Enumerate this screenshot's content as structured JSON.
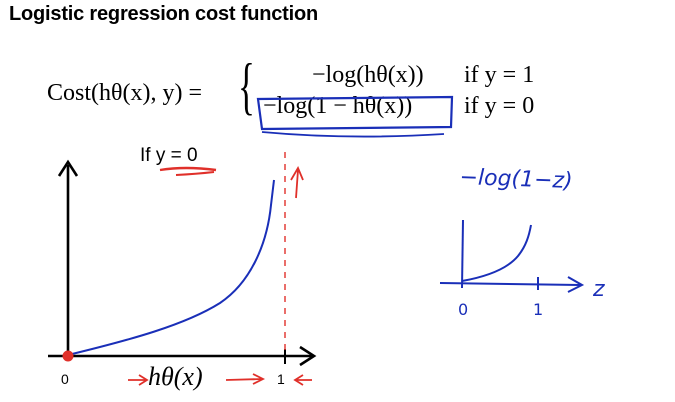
{
  "title": "Logistic regression cost function",
  "equation": {
    "lhs": "Cost(hθ(x), y) =",
    "brace": "{",
    "case1_expr": "−log(hθ(x))",
    "case1_cond": "if y = 1",
    "case2_expr": "−log(1 − hθ(x))",
    "case2_cond": "if y = 0"
  },
  "left_plot": {
    "condition_label": "If y = 0",
    "xlabel": "hθ(x)",
    "x_ticks": [
      "0",
      "1"
    ],
    "curve": "−log(1 − hθ(x))",
    "x_range": [
      0,
      1
    ],
    "asymptote_x": 1
  },
  "right_sketch": {
    "formula": "−log(1−z)",
    "axis_label": "z",
    "x_ticks": [
      "0",
      "1"
    ]
  },
  "colors": {
    "ink": "#000000",
    "pen_blue": "#1a2fb8",
    "pen_red": "#e0302a"
  }
}
